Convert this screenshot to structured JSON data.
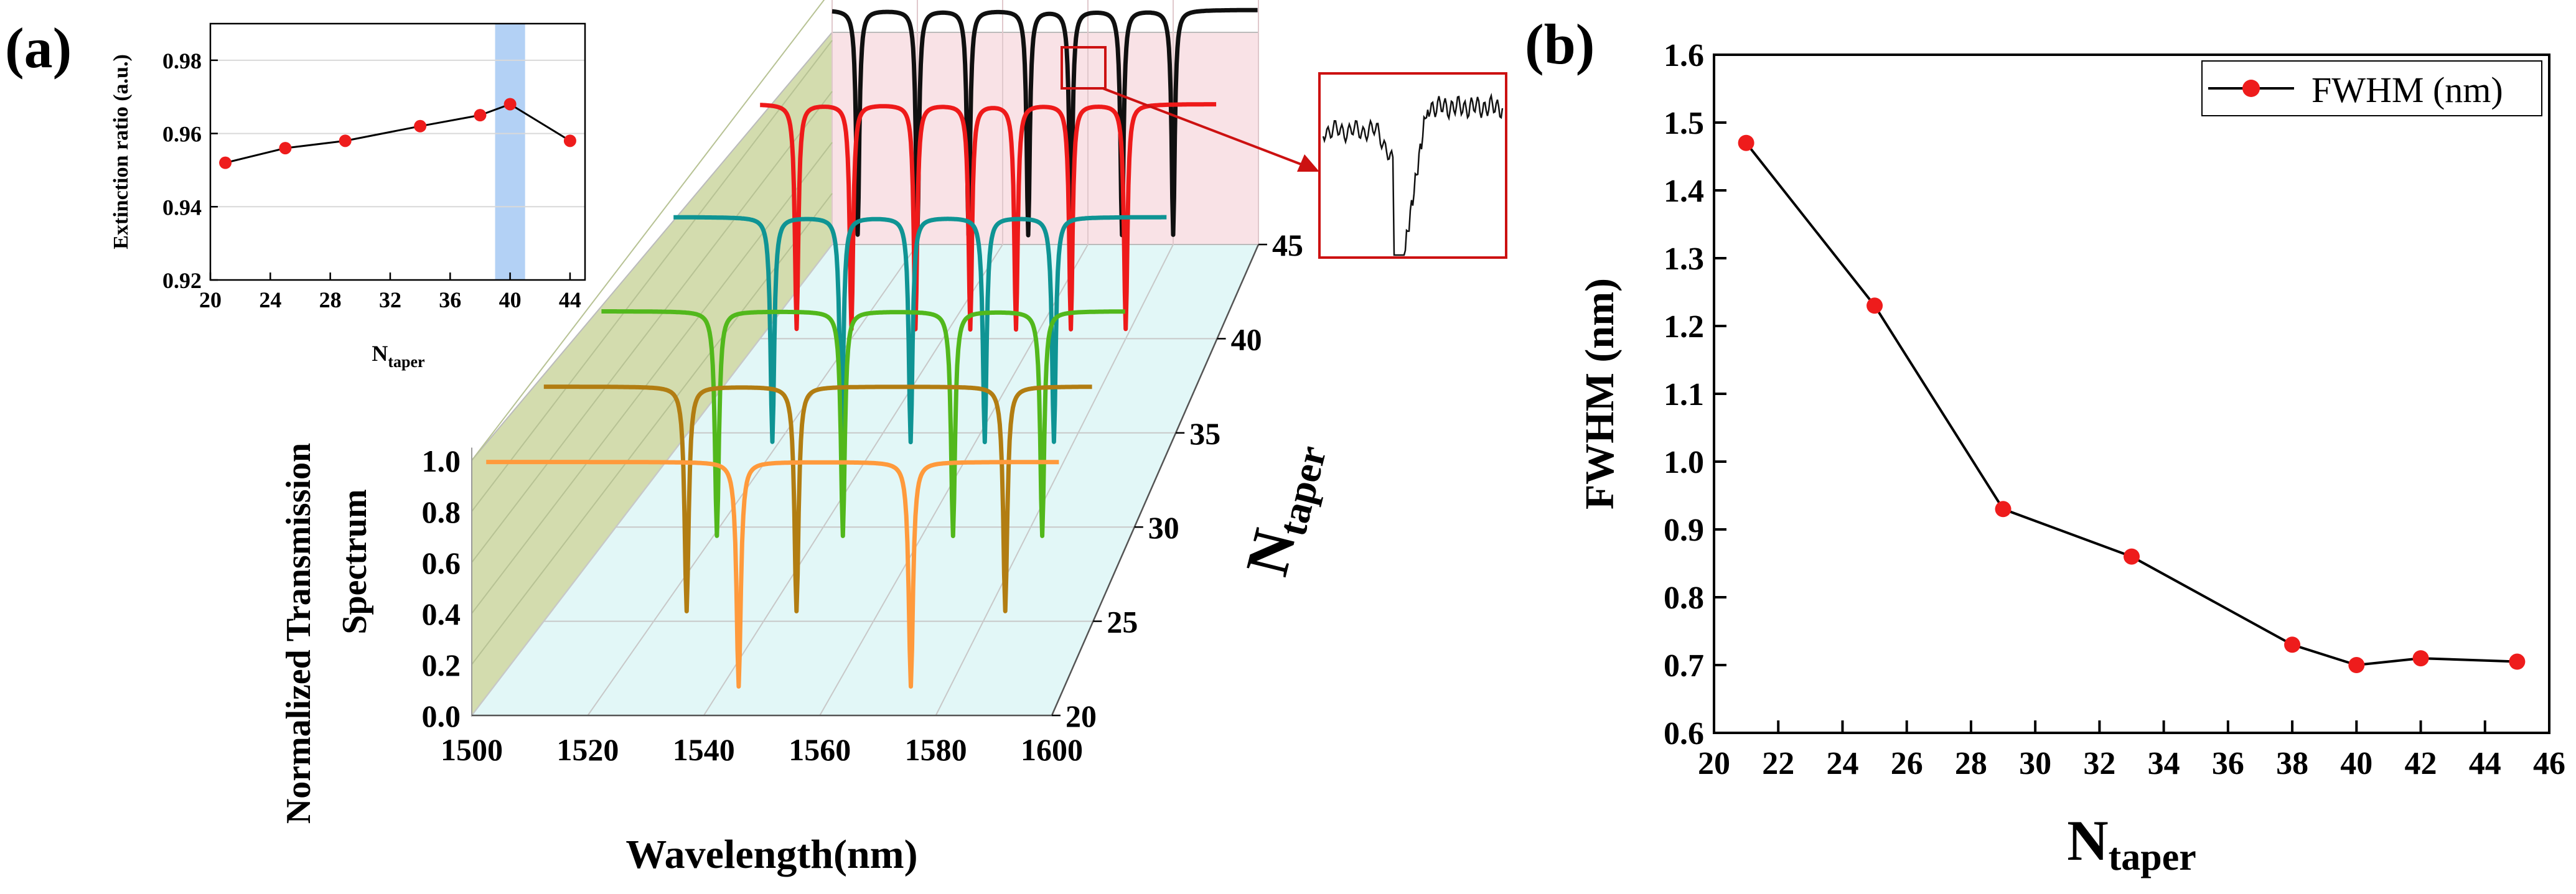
{
  "panel_a_label": "(a)",
  "panel_b_label": "(b)",
  "chart_data": [
    {
      "id": "inset",
      "type": "line",
      "title": "",
      "xlabel": "N",
      "xlabel_sub": "taper",
      "ylabel": "Extinction ratio (a.u.)",
      "x": [
        21,
        25,
        29,
        34,
        38,
        40,
        44
      ],
      "y": [
        0.952,
        0.956,
        0.958,
        0.962,
        0.965,
        0.968,
        0.958
      ],
      "xlim": [
        20,
        45
      ],
      "ylim": [
        0.92,
        0.99
      ],
      "xticks": [
        "20",
        "24",
        "28",
        "32",
        "36",
        "40",
        "44"
      ],
      "yticks": [
        "0.92",
        "0.94",
        "0.96",
        "0.98"
      ],
      "highlight_range": [
        39,
        41
      ],
      "highlight_color": "#b3d1f5",
      "marker_color": "#ee1c1c",
      "line_color": "#000000",
      "grid": true
    },
    {
      "id": "waterfall",
      "type": "line",
      "subtype": "3d-waterfall",
      "xlabel": "Wavelength(nm)",
      "ylabel_line1": "Normalized Transmission",
      "ylabel_line2": "Spectrum",
      "zlabel": "N",
      "zlabel_sub": "taper",
      "xlim": [
        1500,
        1600
      ],
      "xticks": [
        "1500",
        "1520",
        "1540",
        "1560",
        "1580",
        "1600"
      ],
      "yticks": [
        "0.0",
        "0.2",
        "0.4",
        "0.6",
        "0.8",
        "1.0"
      ],
      "zticks": [
        "20",
        "25",
        "30",
        "35",
        "40",
        "45"
      ],
      "series": [
        {
          "name": "N=21",
          "color": "#ff9a3c",
          "dips": [
            1544,
            1574
          ]
        },
        {
          "name": "N=25",
          "color": "#b27d12",
          "dips": [
            1526,
            1546,
            1584
          ]
        },
        {
          "name": "N=29",
          "color": "#52b81c",
          "dips": [
            1522,
            1546,
            1567,
            1584
          ]
        },
        {
          "name": "N=34",
          "color": "#0f9494",
          "dips": [
            1520,
            1534,
            1548,
            1563,
            1577
          ]
        },
        {
          "name": "N=40",
          "color": "#ee1a1a",
          "dips": [
            1508,
            1520,
            1534,
            1546,
            1556,
            1568,
            1580
          ]
        },
        {
          "name": "N=45",
          "color": "#101010",
          "dips": [
            1506,
            1520,
            1532,
            1546,
            1556,
            1568,
            1580
          ]
        }
      ],
      "zoom_box_color": "#cc1111"
    },
    {
      "id": "fwhm",
      "type": "line",
      "xlabel": "N",
      "xlabel_sub": "taper",
      "ylabel": "FWHM (nm)",
      "legend": "FWHM (nm)",
      "legend_position": "top-right",
      "x": [
        21,
        25,
        29,
        33,
        38,
        40,
        42,
        45
      ],
      "y": [
        1.47,
        1.23,
        0.93,
        0.86,
        0.73,
        0.7,
        0.71,
        0.705
      ],
      "xlim": [
        20,
        46
      ],
      "ylim": [
        0.6,
        1.6
      ],
      "xticks": [
        "20",
        "22",
        "24",
        "26",
        "28",
        "30",
        "32",
        "34",
        "36",
        "38",
        "40",
        "42",
        "44",
        "46"
      ],
      "yticks": [
        "0.6",
        "0.7",
        "0.8",
        "0.9",
        "1.0",
        "1.1",
        "1.2",
        "1.3",
        "1.4",
        "1.5",
        "1.6"
      ],
      "marker_color": "#ee1c1c",
      "line_color": "#000000",
      "grid": false
    }
  ]
}
